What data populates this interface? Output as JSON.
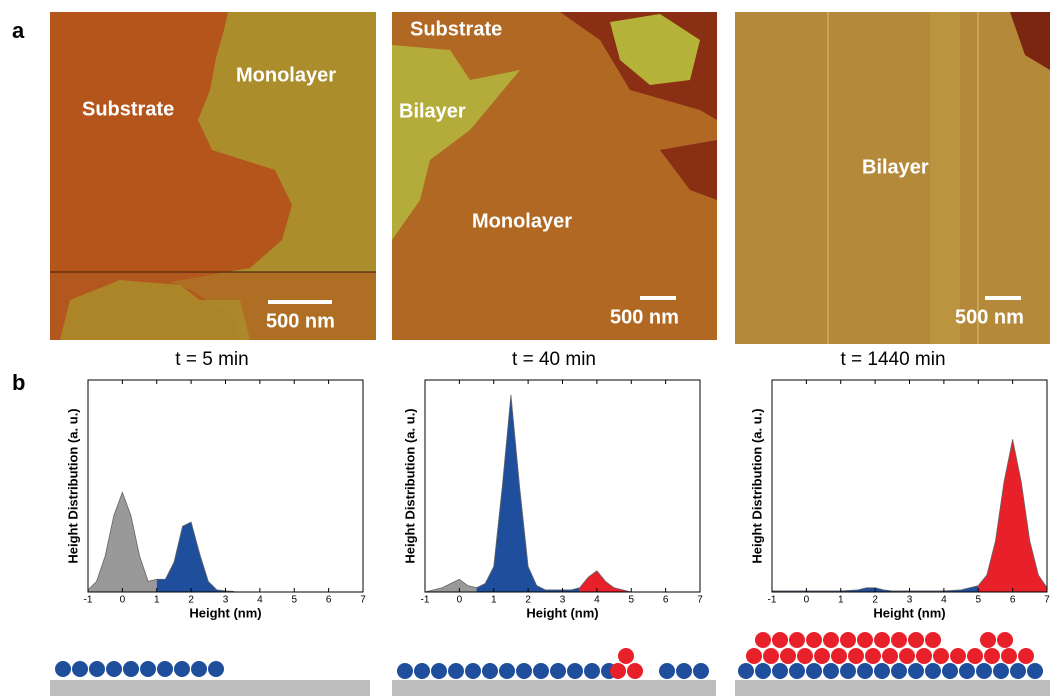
{
  "panel_labels": [
    "a",
    "b"
  ],
  "images": [
    {
      "labels": [
        "Substrate",
        "Monolayer"
      ],
      "scale_bar": "500 nm",
      "caption": "t = 5 min"
    },
    {
      "labels": [
        "Substrate",
        "Bilayer",
        "Monolayer"
      ],
      "scale_bar": "500 nm",
      "caption": "t = 40 min"
    },
    {
      "labels": [
        "Bilayer"
      ],
      "scale_bar": "500 nm",
      "caption": "t = 1440 min"
    }
  ],
  "chart_data": [
    {
      "type": "area",
      "x_label": "Height (nm)",
      "y_label": "Height Distribution (a. u.)",
      "x": [
        -1,
        -0.75,
        -0.5,
        -0.25,
        0,
        0.25,
        0.5,
        0.75,
        1,
        1.25,
        1.5,
        1.75,
        2,
        2.25,
        2.5,
        2.75,
        3,
        3.25
      ],
      "series": [
        {
          "color": "#999999",
          "values": [
            0.01,
            0.05,
            0.17,
            0.36,
            0.47,
            0.36,
            0.17,
            0.05,
            0.06,
            null,
            null,
            null,
            null,
            null,
            null,
            null,
            null,
            null
          ]
        },
        {
          "color": "#1f4e9c",
          "values": [
            null,
            null,
            null,
            null,
            null,
            null,
            null,
            null,
            0.06,
            0.06,
            0.14,
            0.31,
            0.33,
            0.18,
            0.05,
            0.01,
            0.005,
            0.003
          ]
        }
      ],
      "xlim": [
        -1,
        7
      ],
      "xticks": [
        -1,
        0,
        1,
        2,
        3,
        4,
        5,
        6,
        7
      ],
      "ylim": [
        0,
        1
      ]
    },
    {
      "type": "area",
      "x_label": "Height (nm)",
      "y_label": "Height Distribution (a. u.)",
      "x": [
        -1,
        -0.75,
        -0.5,
        -0.25,
        0,
        0.25,
        0.5,
        0.75,
        1,
        1.25,
        1.5,
        1.75,
        2,
        2.25,
        2.5,
        2.75,
        3,
        3.25,
        3.5,
        3.75,
        4,
        4.25,
        4.5,
        4.75,
        5
      ],
      "series": [
        {
          "color": "#999999",
          "values": [
            0,
            0.01,
            0.02,
            0.04,
            0.06,
            0.03,
            0.02,
            null,
            null,
            null,
            null,
            null,
            null,
            null,
            null,
            null,
            null,
            null,
            null,
            null,
            null,
            null,
            null,
            null,
            null
          ]
        },
        {
          "color": "#1f4e9c",
          "values": [
            null,
            null,
            null,
            null,
            null,
            null,
            0.02,
            0.04,
            0.12,
            0.5,
            0.93,
            0.5,
            0.12,
            0.03,
            0.01,
            0.01,
            0.01,
            0.01,
            0.02,
            null,
            null,
            null,
            null,
            null,
            null
          ]
        },
        {
          "color": "#e8202a",
          "values": [
            null,
            null,
            null,
            null,
            null,
            null,
            null,
            null,
            null,
            null,
            null,
            null,
            null,
            null,
            null,
            null,
            null,
            null,
            0.02,
            0.07,
            0.1,
            0.05,
            0.02,
            0.01,
            0
          ]
        }
      ],
      "xlim": [
        -1,
        7
      ],
      "xticks": [
        -1,
        0,
        1,
        2,
        3,
        4,
        5,
        6,
        7
      ],
      "ylim": [
        0,
        1
      ]
    },
    {
      "type": "area",
      "x_label": "Height (nm)",
      "y_label": "Height Distribution (a. u.)",
      "x": [
        -1,
        -0.5,
        0,
        0.5,
        1,
        1.5,
        1.75,
        2,
        2.25,
        2.5,
        3,
        3.5,
        4,
        4.5,
        5,
        5.25,
        5.5,
        5.75,
        6,
        6.25,
        6.5,
        6.75,
        7
      ],
      "series": [
        {
          "color": "#1f4e9c",
          "values": [
            0.005,
            0.005,
            0.005,
            0.005,
            0.005,
            0.01,
            0.02,
            0.02,
            0.01,
            0.005,
            0.005,
            0.005,
            0.005,
            0.01,
            0.03,
            null,
            null,
            null,
            null,
            null,
            null,
            null,
            null
          ]
        },
        {
          "color": "#e8202a",
          "values": [
            null,
            null,
            null,
            null,
            null,
            null,
            null,
            null,
            null,
            null,
            null,
            null,
            null,
            null,
            0.03,
            0.08,
            0.24,
            0.52,
            0.72,
            0.52,
            0.24,
            0.08,
            0.02
          ]
        }
      ],
      "xlim": [
        -1,
        7
      ],
      "xticks": [
        -1,
        0,
        1,
        2,
        3,
        4,
        5,
        6,
        7
      ],
      "ylim": [
        0,
        1
      ]
    }
  ]
}
